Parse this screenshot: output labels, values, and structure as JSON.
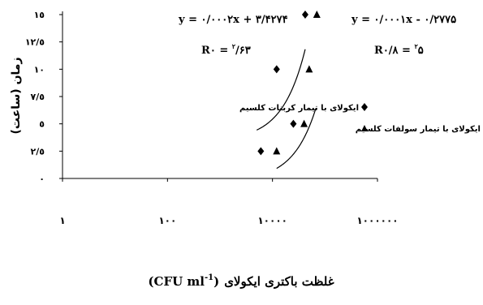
{
  "chart_data": {
    "type": "scatter",
    "x_scale": "log",
    "xlim": [
      1,
      1000000
    ],
    "ylim": [
      0,
      15
    ],
    "x_ticks": [
      1,
      100,
      10000,
      1000000
    ],
    "x_tick_labels": [
      "١",
      "١٠٠",
      "١٠٠٠٠",
      "١٠٠٠٠٠٠"
    ],
    "y_ticks": [
      0,
      2.5,
      5,
      7.5,
      10,
      12.5,
      15
    ],
    "y_tick_labels": [
      "٠",
      "٢/٥",
      "٥",
      "٧/٥",
      "١٠",
      "١٢/٥",
      "١٥"
    ],
    "ylabel": "زمان (ساعت)",
    "xlabel_text": "غلظت باکتری ایکولای",
    "xlabel_unit": "(CFU ml",
    "xlabel_sup": "-1",
    "xlabel_close": ")",
    "legend_position": "right",
    "grid": false,
    "series": [
      {
        "name": "ایکولای با تیمار کربنات کلسیم",
        "marker": "diamond",
        "color": "#000000",
        "points": [
          [
            6000,
            2.5
          ],
          [
            12000,
            10
          ],
          [
            25000,
            5
          ],
          [
            42000,
            15
          ]
        ],
        "trendline": {
          "equation": "y = ٠/٠٠٠٢x + ٣/۴٢٧۴",
          "r2_label": "R",
          "r2_sup": "٢",
          "r2_value": " = ٠/۶٣",
          "slope": 0.0002,
          "intercept": 3.4274,
          "x_range": [
            5000,
            42000
          ]
        }
      },
      {
        "name": "ایکولای با تیمار سولفات کلسیم",
        "marker": "triangle",
        "color": "#000000",
        "points": [
          [
            12000,
            2.5
          ],
          [
            40000,
            5
          ],
          [
            50000,
            10
          ],
          [
            70000,
            15
          ]
        ],
        "trendline": {
          "equation": "y = ٠/٠٠٠١x - ٠/٢٧٧۵",
          "r2_label": "R",
          "r2_sup": "٢",
          "r2_value": " = ٠/٨۵",
          "slope": 0.0001,
          "intercept": -0.2775,
          "x_range": [
            12000,
            67000
          ]
        }
      }
    ]
  }
}
